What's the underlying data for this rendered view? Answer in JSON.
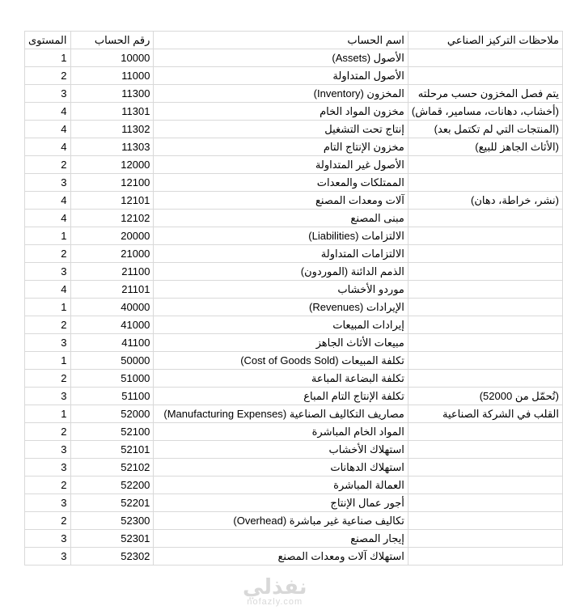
{
  "headers": {
    "level": "المستوى",
    "account_number": "رقم الحساب",
    "account_name": "اسم الحساب",
    "notes": "ملاحظات التركيز الصناعي"
  },
  "rows": [
    {
      "level": "1",
      "number": "10000",
      "name": "الأصول (Assets)",
      "note": ""
    },
    {
      "level": "2",
      "number": "11000",
      "name": "الأصول المتداولة",
      "note": ""
    },
    {
      "level": "3",
      "number": "11300",
      "name": "المخزون (Inventory)",
      "note": "يتم فصل المخزون حسب مرحلته"
    },
    {
      "level": "4",
      "number": "11301",
      "name": "مخزون المواد الخام",
      "note": "(أخشاب، دهانات، مسامير، قماش)"
    },
    {
      "level": "4",
      "number": "11302",
      "name": "إنتاج تحت التشغيل",
      "note": "(المنتجات التي لم تكتمل بعد)"
    },
    {
      "level": "4",
      "number": "11303",
      "name": "مخزون الإنتاج التام",
      "note": "(الأثاث الجاهز للبيع)"
    },
    {
      "level": "2",
      "number": "12000",
      "name": "الأصول غير المتداولة",
      "note": ""
    },
    {
      "level": "3",
      "number": "12100",
      "name": "الممتلكات والمعدات",
      "note": ""
    },
    {
      "level": "4",
      "number": "12101",
      "name": "آلات ومعدات المصنع",
      "note": "(نشر، خراطة، دهان)"
    },
    {
      "level": "4",
      "number": "12102",
      "name": "مبنى المصنع",
      "note": ""
    },
    {
      "level": "1",
      "number": "20000",
      "name": "الالتزامات (Liabilities)",
      "note": ""
    },
    {
      "level": "2",
      "number": "21000",
      "name": "الالتزامات المتداولة",
      "note": ""
    },
    {
      "level": "3",
      "number": "21100",
      "name": "الذمم الدائنة (الموردون)",
      "note": ""
    },
    {
      "level": "4",
      "number": "21101",
      "name": "موردو الأخشاب",
      "note": ""
    },
    {
      "level": "1",
      "number": "40000",
      "name": "الإيرادات (Revenues)",
      "note": ""
    },
    {
      "level": "2",
      "number": "41000",
      "name": "إيرادات المبيعات",
      "note": ""
    },
    {
      "level": "3",
      "number": "41100",
      "name": "مبيعات الأثاث الجاهز",
      "note": ""
    },
    {
      "level": "1",
      "number": "50000",
      "name": "تكلفة المبيعات (Cost of Goods Sold)",
      "note": ""
    },
    {
      "level": "2",
      "number": "51000",
      "name": "تكلفة البضاعة المباعة",
      "note": ""
    },
    {
      "level": "3",
      "number": "51100",
      "name": "تكلفة الإنتاج التام المباع",
      "note": "(تُحمّل من 52000)"
    },
    {
      "level": "1",
      "number": "52000",
      "name": "مصاريف التكاليف الصناعية (Manufacturing Expenses)",
      "note": "القلب في الشركة الصناعية"
    },
    {
      "level": "2",
      "number": "52100",
      "name": "المواد الخام المباشرة",
      "note": ""
    },
    {
      "level": "3",
      "number": "52101",
      "name": "استهلاك الأخشاب",
      "note": ""
    },
    {
      "level": "3",
      "number": "52102",
      "name": "استهلاك الدهانات",
      "note": ""
    },
    {
      "level": "2",
      "number": "52200",
      "name": "العمالة المباشرة",
      "note": ""
    },
    {
      "level": "3",
      "number": "52201",
      "name": "أجور عمال الإنتاج",
      "note": ""
    },
    {
      "level": "2",
      "number": "52300",
      "name": "تكاليف صناعية غير مباشرة (Overhead)",
      "note": ""
    },
    {
      "level": "3",
      "number": "52301",
      "name": "إيجار المصنع",
      "note": ""
    },
    {
      "level": "3",
      "number": "52302",
      "name": "استهلاك آلات ومعدات المصنع",
      "note": ""
    }
  ],
  "watermark": {
    "arabic": "نفذلي",
    "latin": "nofazly.com"
  }
}
